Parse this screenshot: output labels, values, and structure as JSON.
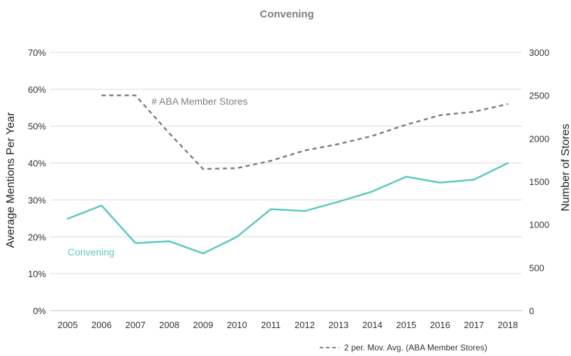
{
  "colors": {
    "convening": "#5BC8C2",
    "stores": "#7F7F7F",
    "grid": "#D9D9D9"
  },
  "chart_data": {
    "type": "line",
    "title": "Convening",
    "x": [
      2005,
      2006,
      2007,
      2008,
      2009,
      2010,
      2011,
      2012,
      2013,
      2014,
      2015,
      2016,
      2017,
      2018
    ],
    "series": [
      {
        "name": "Convening",
        "axis": "left",
        "style": "solid",
        "color": "#5BC8C2",
        "values": [
          24.9,
          28.5,
          18.3,
          18.8,
          15.5,
          20.0,
          27.5,
          27.0,
          29.5,
          32.3,
          36.3,
          34.7,
          35.5,
          40.0
        ]
      },
      {
        "name": "2 per. Mov. Avg. (ABA Member Stores)",
        "label": "# ABA Member Stores",
        "axis": "right",
        "style": "dashed",
        "color": "#7F7F7F",
        "values": [
          null,
          2500,
          2500,
          2060,
          1645,
          1655,
          1740,
          1860,
          1935,
          2030,
          2160,
          2270,
          2310,
          2400
        ]
      }
    ],
    "ylabel": "Average Mentions Per Year",
    "y2label": "Number of Stores",
    "ylim": [
      0,
      70
    ],
    "y2lim": [
      0,
      3000
    ],
    "yticks": [
      "0%",
      "10%",
      "20%",
      "30%",
      "40%",
      "50%",
      "60%",
      "70%"
    ],
    "y2ticks": [
      "0",
      "500",
      "1000",
      "1500",
      "2000",
      "2500",
      "3000"
    ],
    "grid": true,
    "legend": {
      "position": "bottom-right",
      "entries": [
        "2 per. Mov. Avg. (ABA Member Stores)"
      ]
    }
  }
}
